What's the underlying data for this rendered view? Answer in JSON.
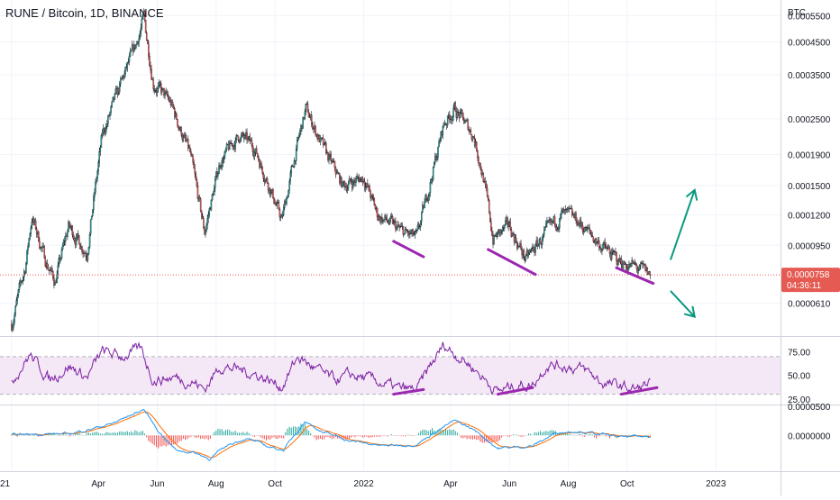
{
  "title": "RUNE / Bitcoin, 1D, BINANCE",
  "colors": {
    "up": "#26a69a",
    "down": "#ef5350",
    "candle_border": "#131722",
    "rsi_line": "#7b1fa2",
    "rsi_band": "#e1bee7",
    "macd_line": "#2196f3",
    "signal_line": "#ff6d00",
    "hist_up": "#26a69a",
    "hist_down": "#ef5350",
    "trend_purple": "#9c27b0",
    "arrow_green": "#089981",
    "price_tag": "#e55b53",
    "last_price_line": "#ef5350"
  },
  "chart_data": [
    {
      "type": "candlestick",
      "name": "price",
      "unit": "BTC",
      "log_scale": true,
      "ylim": [
        5.2e-05,
        6.5e-05
      ],
      "y_ticks": [
        "0.0005500",
        "0.0004500",
        "0.0003500",
        "0.0002500",
        "0.0001900",
        "0.0001500",
        "0.0001200",
        "0.0000950",
        "0.0000610"
      ],
      "y_tick_values": [
        0.00055,
        0.00045,
        0.00035,
        0.00025,
        0.00019,
        0.00015,
        0.00012,
        9.5e-05,
        6.1e-05
      ],
      "x_ticks": [
        "21",
        "Apr",
        "Jun",
        "Aug",
        "Oct",
        "2022",
        "Apr",
        "Jun",
        "Aug",
        "Oct",
        "2023"
      ],
      "x_tick_dates": [
        "2021-01-01",
        "2021-04-01",
        "2021-06-01",
        "2021-08-01",
        "2021-10-01",
        "2022-01-01",
        "2022-04-01",
        "2022-06-01",
        "2022-08-01",
        "2022-10-01",
        "2023-01-01"
      ],
      "axis_unit_label": "BTC",
      "anchors": [
        [
          "2021-01-01",
          5.2e-05
        ],
        [
          "2021-01-15",
          8e-05
        ],
        [
          "2021-01-22",
          0.000118
        ],
        [
          "2021-02-05",
          8.5e-05
        ],
        [
          "2021-02-15",
          7.2e-05
        ],
        [
          "2021-03-01",
          0.00011
        ],
        [
          "2021-03-20",
          9e-05
        ],
        [
          "2021-04-05",
          0.00022
        ],
        [
          "2021-04-25",
          0.00033
        ],
        [
          "2021-05-10",
          0.00044
        ],
        [
          "2021-05-18",
          0.00054
        ],
        [
          "2021-05-28",
          0.00033
        ],
        [
          "2021-06-15",
          0.00028
        ],
        [
          "2021-07-05",
          0.00019
        ],
        [
          "2021-07-20",
          0.000105
        ],
        [
          "2021-08-05",
          0.00018
        ],
        [
          "2021-08-25",
          0.00022
        ],
        [
          "2021-09-10",
          0.0002
        ],
        [
          "2021-09-25",
          0.00015
        ],
        [
          "2021-10-08",
          0.000115
        ],
        [
          "2021-10-22",
          0.00019
        ],
        [
          "2021-11-02",
          0.00027
        ],
        [
          "2021-11-20",
          0.0002
        ],
        [
          "2021-12-10",
          0.00015
        ],
        [
          "2022-01-01",
          0.00016
        ],
        [
          "2022-01-15",
          0.00012
        ],
        [
          "2022-02-10",
          0.000105
        ],
        [
          "2022-02-25",
          0.0001
        ],
        [
          "2022-03-10",
          0.00015
        ],
        [
          "2022-03-25",
          0.00024
        ],
        [
          "2022-04-05",
          0.00027
        ],
        [
          "2022-04-25",
          0.00022
        ],
        [
          "2022-05-05",
          0.00016
        ],
        [
          "2022-05-15",
          0.0001
        ],
        [
          "2022-06-01",
          0.00011
        ],
        [
          "2022-06-18",
          8.5e-05
        ],
        [
          "2022-07-05",
          0.0001
        ],
        [
          "2022-07-25",
          0.00012
        ],
        [
          "2022-08-10",
          0.000115
        ],
        [
          "2022-09-01",
          9.7e-05
        ],
        [
          "2022-09-20",
          8.5e-05
        ],
        [
          "2022-10-10",
          8e-05
        ],
        [
          "2022-10-25",
          7.58e-05
        ]
      ],
      "last_price": "0.0000758",
      "countdown": "04:36:11"
    },
    {
      "type": "line",
      "name": "rsi",
      "ylim": [
        20,
        90
      ],
      "band": [
        30,
        70
      ],
      "y_ticks": [
        "75.00",
        "50.00",
        "25.00"
      ],
      "y_tick_values": [
        75,
        50,
        25
      ],
      "anchors": [
        [
          "2021-01-01",
          45
        ],
        [
          "2021-01-20",
          72
        ],
        [
          "2021-02-10",
          45
        ],
        [
          "2021-03-01",
          60
        ],
        [
          "2021-03-20",
          48
        ],
        [
          "2021-04-05",
          75
        ],
        [
          "2021-04-25",
          70
        ],
        [
          "2021-05-15",
          78
        ],
        [
          "2021-05-28",
          45
        ],
        [
          "2021-06-20",
          48
        ],
        [
          "2021-07-10",
          42
        ],
        [
          "2021-07-20",
          35
        ],
        [
          "2021-08-05",
          60
        ],
        [
          "2021-08-25",
          56
        ],
        [
          "2021-09-15",
          50
        ],
        [
          "2021-10-08",
          38
        ],
        [
          "2021-10-25",
          70
        ],
        [
          "2021-11-10",
          58
        ],
        [
          "2021-12-01",
          45
        ],
        [
          "2021-12-20",
          50
        ],
        [
          "2022-01-10",
          45
        ],
        [
          "2022-02-05",
          36
        ],
        [
          "2022-02-25",
          34
        ],
        [
          "2022-03-10",
          58
        ],
        [
          "2022-03-25",
          82
        ],
        [
          "2022-04-10",
          70
        ],
        [
          "2022-04-25",
          58
        ],
        [
          "2022-05-10",
          42
        ],
        [
          "2022-05-20",
          33
        ],
        [
          "2022-06-10",
          40
        ],
        [
          "2022-06-25",
          40
        ],
        [
          "2022-07-10",
          62
        ],
        [
          "2022-07-30",
          60
        ],
        [
          "2022-08-20",
          55
        ],
        [
          "2022-09-05",
          42
        ],
        [
          "2022-09-25",
          38
        ],
        [
          "2022-10-10",
          35
        ],
        [
          "2022-10-25",
          42
        ]
      ]
    },
    {
      "type": "bar+line",
      "name": "macd",
      "ylim": [
        -6e-05,
        5e-05
      ],
      "y_ticks": [
        "0.0000500",
        "0.0000000"
      ],
      "y_tick_values": [
        5e-05,
        0.0
      ],
      "macd_anchors": [
        [
          "2021-01-01",
          0
        ],
        [
          "2021-02-01",
          3e-06
        ],
        [
          "2021-03-01",
          2e-06
        ],
        [
          "2021-04-15",
          2e-05
        ],
        [
          "2021-05-05",
          3.5e-05
        ],
        [
          "2021-05-18",
          4.5e-05
        ],
        [
          "2021-06-01",
          1e-05
        ],
        [
          "2021-06-20",
          -2.5e-05
        ],
        [
          "2021-07-10",
          -3e-05
        ],
        [
          "2021-07-25",
          -4e-05
        ],
        [
          "2021-08-15",
          -1.5e-05
        ],
        [
          "2021-09-01",
          -5e-06
        ],
        [
          "2021-09-25",
          -2e-05
        ],
        [
          "2021-10-10",
          -2.5e-05
        ],
        [
          "2021-11-01",
          2.5e-05
        ],
        [
          "2021-11-20",
          5e-06
        ],
        [
          "2021-12-20",
          -1e-05
        ],
        [
          "2022-01-20",
          -1.8e-05
        ],
        [
          "2022-02-25",
          -1.5e-05
        ],
        [
          "2022-03-15",
          5e-06
        ],
        [
          "2022-04-05",
          2.5e-05
        ],
        [
          "2022-04-25",
          1e-05
        ],
        [
          "2022-05-20",
          -2.2e-05
        ],
        [
          "2022-06-10",
          -2e-05
        ],
        [
          "2022-06-25",
          -1.8e-05
        ],
        [
          "2022-07-20",
          5e-06
        ],
        [
          "2022-08-10",
          8e-06
        ],
        [
          "2022-09-01",
          2e-06
        ],
        [
          "2022-09-25",
          -3e-06
        ],
        [
          "2022-10-25",
          -2e-06
        ]
      ]
    }
  ],
  "annotations": {
    "price_trendlines": [
      [
        [
          "2022-02-01",
          9.8e-05
        ],
        [
          "2022-03-04",
          8.7e-05
        ]
      ],
      [
        [
          "2022-05-10",
          9.2e-05
        ],
        [
          "2022-06-28",
          7.6e-05
        ]
      ],
      [
        [
          "2022-09-20",
          8e-05
        ],
        [
          "2022-10-28",
          7.1e-05
        ]
      ]
    ],
    "rsi_trendlines": [
      [
        [
          "2022-02-01",
          30
        ],
        [
          "2022-03-04",
          35
        ]
      ],
      [
        [
          "2022-05-20",
          30
        ],
        [
          "2022-06-25",
          37
        ]
      ],
      [
        [
          "2022-09-25",
          30
        ],
        [
          "2022-11-01",
          37
        ]
      ]
    ],
    "arrows": [
      {
        "from": [
          "2022-11-15",
          8.5e-05
        ],
        "to": [
          "2022-12-10",
          0.000145
        ],
        "direction": "up"
      },
      {
        "from": [
          "2022-11-15",
          6.7e-05
        ],
        "to": [
          "2022-12-10",
          5.5e-05
        ],
        "direction": "down"
      }
    ]
  }
}
